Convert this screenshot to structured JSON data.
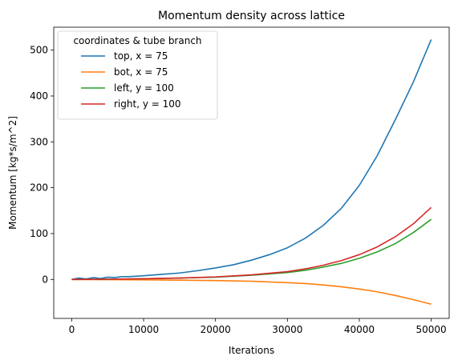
{
  "chart_data": {
    "type": "line",
    "title": "Momentum density across lattice",
    "xlabel": "Iterations",
    "ylabel": "Momentum [kg*s/m^2]",
    "xlim": [
      -2500,
      52500
    ],
    "ylim": [
      -85,
      550
    ],
    "xticks": [
      0,
      10000,
      20000,
      30000,
      40000,
      50000
    ],
    "xtick_labels": [
      "0",
      "10000",
      "20000",
      "30000",
      "40000",
      "50000"
    ],
    "yticks": [
      0,
      100,
      200,
      300,
      400,
      500
    ],
    "ytick_labels": [
      "0",
      "100",
      "200",
      "300",
      "400",
      "500"
    ],
    "grid": false,
    "legend": {
      "title": "coordinates & tube branch",
      "position": "top-left"
    },
    "series": [
      {
        "name": "top, x = 75",
        "color": "#1f77b4",
        "x": [
          0,
          1000,
          2000,
          3000,
          4000,
          5000,
          6000,
          7000,
          8000,
          10000,
          12500,
          15000,
          17500,
          20000,
          22500,
          25000,
          27500,
          30000,
          32500,
          35000,
          37500,
          40000,
          42500,
          45000,
          47500,
          50000
        ],
        "y": [
          0,
          3,
          1,
          4,
          2,
          5,
          4,
          6,
          6,
          8,
          11,
          14,
          19,
          25,
          32,
          42,
          54,
          69,
          90,
          118,
          155,
          205,
          270,
          348,
          430,
          523
        ]
      },
      {
        "name": "bot, x = 75",
        "color": "#ff7f0e",
        "x": [
          0,
          5000,
          10000,
          15000,
          20000,
          25000,
          30000,
          32500,
          35000,
          37500,
          40000,
          42500,
          45000,
          47500,
          50000
        ],
        "y": [
          0,
          -0.5,
          -1,
          -1.5,
          -2.5,
          -4,
          -7,
          -9,
          -12,
          -16,
          -21,
          -27,
          -35,
          -44,
          -54
        ]
      },
      {
        "name": "left, y = 100",
        "color": "#2ca02c",
        "x": [
          0,
          5000,
          10000,
          15000,
          20000,
          25000,
          30000,
          32500,
          35000,
          37500,
          40000,
          42500,
          45000,
          47500,
          50000
        ],
        "y": [
          0,
          0.5,
          1.5,
          3,
          5,
          9,
          15,
          20,
          27,
          35,
          46,
          60,
          78,
          102,
          131
        ]
      },
      {
        "name": "right, y = 100",
        "color": "#d62728",
        "x": [
          0,
          5000,
          10000,
          15000,
          20000,
          25000,
          30000,
          32500,
          35000,
          37500,
          40000,
          42500,
          45000,
          47500,
          50000
        ],
        "y": [
          0,
          0.5,
          1.5,
          3,
          5.5,
          10,
          17,
          23,
          31,
          41,
          54,
          71,
          93,
          121,
          157
        ]
      }
    ]
  }
}
